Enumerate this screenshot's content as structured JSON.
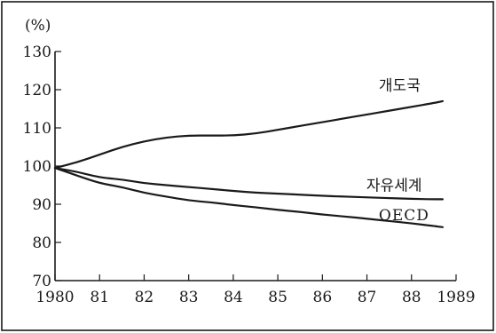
{
  "chart_data": {
    "type": "line",
    "title": "",
    "xlabel": "",
    "ylabel": "(%)",
    "xlim": [
      1980,
      1989
    ],
    "ylim": [
      70,
      130
    ],
    "x_ticks": [
      1980,
      1981,
      1982,
      1983,
      1984,
      1985,
      1986,
      1987,
      1988,
      1989
    ],
    "x_tick_labels": [
      "1980",
      "81",
      "82",
      "83",
      "84",
      "85",
      "86",
      "87",
      "88",
      "1989"
    ],
    "y_ticks": [
      70,
      80,
      90,
      100,
      110,
      120,
      130
    ],
    "y_tick_labels": [
      "70",
      "80",
      "90",
      "100",
      "110",
      "120",
      "130"
    ],
    "grid": false,
    "legend": "inline",
    "x": [
      1980,
      1980.5,
      1981,
      1981.5,
      1982,
      1982.5,
      1983,
      1983.5,
      1984,
      1984.5,
      1985,
      1985.5,
      1986,
      1986.5,
      1987,
      1987.5,
      1988,
      1988.5,
      1988.7
    ],
    "series": [
      {
        "name": "개도국",
        "values": [
          99.5,
          101.0,
          103.0,
          105.0,
          106.5,
          107.5,
          108.0,
          108.0,
          108.0,
          108.5,
          109.5,
          110.5,
          111.5,
          112.5,
          113.5,
          114.5,
          115.5,
          116.5,
          117.0
        ]
      },
      {
        "name": "자유세계",
        "values": [
          99.5,
          98.5,
          97.0,
          96.5,
          95.5,
          95.0,
          94.5,
          94.0,
          93.5,
          93.0,
          92.8,
          92.5,
          92.2,
          92.0,
          91.8,
          91.6,
          91.4,
          91.3,
          91.3
        ]
      },
      {
        "name": "OECD",
        "values": [
          99.5,
          97.5,
          95.5,
          94.5,
          93.0,
          92.0,
          91.0,
          90.5,
          89.8,
          89.2,
          88.5,
          88.0,
          87.3,
          86.8,
          86.2,
          85.6,
          85.0,
          84.3,
          84.0
        ]
      }
    ]
  }
}
